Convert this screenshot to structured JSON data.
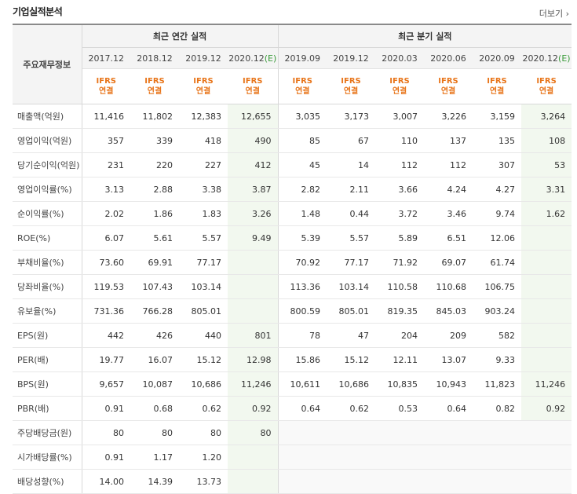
{
  "header": {
    "title": "기업실적분석",
    "more_label": "더보기"
  },
  "table": {
    "corner_label": "주요재무정보",
    "groups": [
      "최근 연간 실적",
      "최근 분기 실적"
    ],
    "annual_periods": [
      "2017.12",
      "2018.12",
      "2019.12",
      "2020.12"
    ],
    "quarter_periods": [
      "2019.09",
      "2019.12",
      "2020.03",
      "2020.06",
      "2020.09",
      "2020.12"
    ],
    "estimate_mark": "(E)",
    "basis_top": "IFRS",
    "basis_bottom": "연결",
    "rows": [
      {
        "label": "매출액(억원)",
        "values": [
          "11,416",
          "11,802",
          "12,383",
          "12,655",
          "3,035",
          "3,173",
          "3,007",
          "3,226",
          "3,159",
          "3,264"
        ]
      },
      {
        "label": "영업이익(억원)",
        "values": [
          "357",
          "339",
          "418",
          "490",
          "85",
          "67",
          "110",
          "137",
          "135",
          "108"
        ]
      },
      {
        "label": "당기순이익(억원)",
        "values": [
          "231",
          "220",
          "227",
          "412",
          "45",
          "14",
          "112",
          "112",
          "307",
          "53"
        ]
      },
      {
        "label": "영업이익률(%)",
        "values": [
          "3.13",
          "2.88",
          "3.38",
          "3.87",
          "2.82",
          "2.11",
          "3.66",
          "4.24",
          "4.27",
          "3.31"
        ]
      },
      {
        "label": "순이익률(%)",
        "values": [
          "2.02",
          "1.86",
          "1.83",
          "3.26",
          "1.48",
          "0.44",
          "3.72",
          "3.46",
          "9.74",
          "1.62"
        ]
      },
      {
        "label": "ROE(%)",
        "values": [
          "6.07",
          "5.61",
          "5.57",
          "9.49",
          "5.39",
          "5.57",
          "5.89",
          "6.51",
          "12.06",
          ""
        ]
      },
      {
        "label": "부채비율(%)",
        "values": [
          "73.60",
          "69.91",
          "77.17",
          "",
          "70.92",
          "77.17",
          "71.92",
          "69.07",
          "61.74",
          ""
        ]
      },
      {
        "label": "당좌비율(%)",
        "values": [
          "119.53",
          "107.43",
          "103.14",
          "",
          "113.36",
          "103.14",
          "110.58",
          "110.68",
          "106.75",
          ""
        ]
      },
      {
        "label": "유보율(%)",
        "values": [
          "731.36",
          "766.28",
          "805.01",
          "",
          "800.59",
          "805.01",
          "819.35",
          "845.03",
          "903.24",
          ""
        ]
      },
      {
        "label": "EPS(원)",
        "values": [
          "442",
          "426",
          "440",
          "801",
          "78",
          "47",
          "204",
          "209",
          "582",
          ""
        ]
      },
      {
        "label": "PER(배)",
        "values": [
          "19.77",
          "16.07",
          "15.12",
          "12.98",
          "15.86",
          "15.12",
          "12.11",
          "13.07",
          "9.33",
          ""
        ]
      },
      {
        "label": "BPS(원)",
        "values": [
          "9,657",
          "10,087",
          "10,686",
          "11,246",
          "10,611",
          "10,686",
          "10,835",
          "10,943",
          "11,823",
          "11,246"
        ]
      },
      {
        "label": "PBR(배)",
        "values": [
          "0.91",
          "0.68",
          "0.62",
          "0.92",
          "0.64",
          "0.62",
          "0.53",
          "0.64",
          "0.82",
          "0.92"
        ]
      },
      {
        "label": "주당배당금(원)",
        "values": [
          "80",
          "80",
          "80",
          "80",
          "",
          "",
          "",
          "",
          "",
          ""
        ]
      },
      {
        "label": "시가배당률(%)",
        "values": [
          "0.91",
          "1.17",
          "1.20",
          "",
          "",
          "",
          "",
          "",
          "",
          ""
        ]
      },
      {
        "label": "배당성향(%)",
        "values": [
          "14.00",
          "14.39",
          "13.73",
          "",
          "",
          "",
          "",
          "",
          "",
          ""
        ]
      }
    ]
  }
}
